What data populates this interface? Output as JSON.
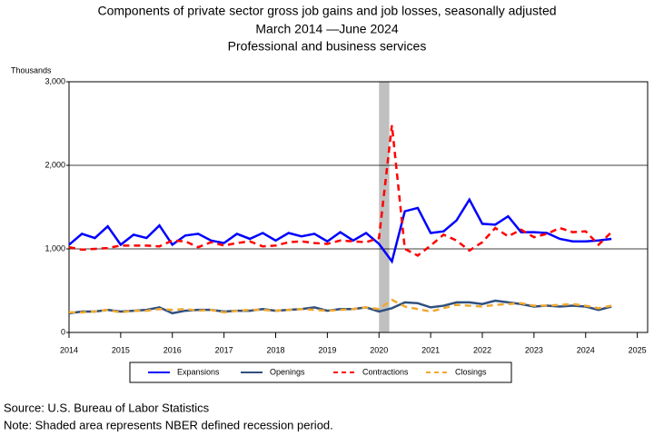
{
  "chart_data": {
    "type": "line",
    "title": "Components of private sector gross job gains and job losses, seasonally adjusted",
    "subtitle": [
      "March 2014 —June 2024",
      "Professional and business services"
    ],
    "ylabel": "Thousands",
    "x": [
      2014,
      2014.25,
      2014.5,
      2014.75,
      2015,
      2015.25,
      2015.5,
      2015.75,
      2016,
      2016.25,
      2016.5,
      2016.75,
      2017,
      2017.25,
      2017.5,
      2017.75,
      2018,
      2018.25,
      2018.5,
      2018.75,
      2019,
      2019.25,
      2019.5,
      2019.75,
      2020,
      2020.25,
      2020.5,
      2020.75,
      2021,
      2021.25,
      2021.5,
      2021.75,
      2022,
      2022.25,
      2022.5,
      2022.75,
      2023,
      2023.25,
      2023.5,
      2023.75,
      2024,
      2024.25,
      2024.5
    ],
    "series": [
      {
        "name": "Expansions",
        "color": "#0000ff",
        "dash": false,
        "values": [
          1050,
          1180,
          1130,
          1270,
          1050,
          1170,
          1130,
          1280,
          1050,
          1160,
          1180,
          1100,
          1070,
          1180,
          1120,
          1190,
          1100,
          1190,
          1150,
          1180,
          1090,
          1200,
          1100,
          1190,
          1060,
          850,
          1450,
          1490,
          1190,
          1210,
          1340,
          1590,
          1300,
          1290,
          1390,
          1200,
          1200,
          1190,
          1120,
          1090,
          1090,
          1100,
          1120
        ]
      },
      {
        "name": "Openings",
        "color": "#2f4f7f",
        "dash": false,
        "values": [
          230,
          250,
          250,
          270,
          250,
          260,
          270,
          300,
          230,
          260,
          270,
          270,
          250,
          260,
          260,
          280,
          260,
          270,
          280,
          300,
          260,
          280,
          280,
          300,
          250,
          290,
          360,
          350,
          300,
          320,
          360,
          360,
          340,
          380,
          360,
          340,
          310,
          320,
          310,
          320,
          310,
          270,
          310
        ]
      },
      {
        "name": "Contractions",
        "color": "#ff0000",
        "dash": true,
        "values": [
          1020,
          990,
          1000,
          1010,
          1040,
          1040,
          1040,
          1030,
          1100,
          1090,
          1020,
          1080,
          1040,
          1070,
          1090,
          1030,
          1040,
          1080,
          1090,
          1070,
          1060,
          1100,
          1090,
          1080,
          1130,
          2480,
          1000,
          920,
          1040,
          1170,
          1100,
          980,
          1080,
          1250,
          1150,
          1230,
          1140,
          1180,
          1250,
          1200,
          1210,
          1050,
          1200
        ]
      },
      {
        "name": "Closings",
        "color": "#f0a830",
        "dash": true,
        "values": [
          240,
          240,
          250,
          270,
          240,
          260,
          260,
          280,
          270,
          280,
          260,
          270,
          240,
          260,
          270,
          270,
          260,
          270,
          280,
          270,
          260,
          270,
          280,
          300,
          280,
          390,
          310,
          280,
          250,
          290,
          330,
          320,
          310,
          330,
          340,
          350,
          320,
          320,
          330,
          340,
          320,
          290,
          320
        ]
      }
    ],
    "recession": [
      2020,
      2020.2
    ],
    "recession_color": "#c0c0c0",
    "xlim": [
      2014,
      2025.2
    ],
    "xticks": [
      2014,
      2015,
      2016,
      2017,
      2018,
      2019,
      2020,
      2021,
      2022,
      2023,
      2024,
      2025
    ],
    "ylim": [
      0,
      3000
    ],
    "yticks": [
      0,
      {
        "value": 1000,
        "label": "1,000"
      },
      {
        "value": 2000,
        "label": "2,000"
      },
      {
        "value": 3000,
        "label": "3,000"
      }
    ],
    "grid": true,
    "notes": [
      "Source: U.S. Bureau of Labor Statistics",
      "Note: Shaded area represents NBER defined recession period."
    ]
  }
}
